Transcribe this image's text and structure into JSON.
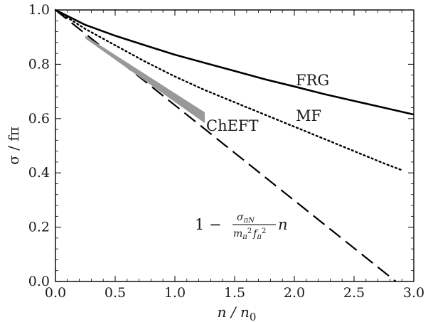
{
  "chart_data": {
    "type": "line",
    "title": "",
    "xlabel": "n / n",
    "xlabel_sub": "0",
    "ylabel": "σ / f",
    "ylabel_tail": "π",
    "xlim": [
      0.0,
      3.0
    ],
    "ylim": [
      0.0,
      1.0
    ],
    "x_ticks": [
      "0.0",
      "0.5",
      "1.0",
      "1.5",
      "2.0",
      "2.5",
      "3.0"
    ],
    "y_ticks": [
      "0.0",
      "0.2",
      "0.4",
      "0.6",
      "0.8",
      "1.0"
    ],
    "grid": false,
    "series": [
      {
        "name": "FRG",
        "style": "solid",
        "x": [
          0.0,
          0.25,
          0.5,
          0.75,
          1.0,
          1.25,
          1.5,
          1.75,
          2.0,
          2.25,
          2.5,
          2.75,
          3.0
        ],
        "y": [
          1.0,
          0.945,
          0.905,
          0.87,
          0.835,
          0.805,
          0.775,
          0.745,
          0.718,
          0.69,
          0.665,
          0.64,
          0.615
        ]
      },
      {
        "name": "MF",
        "style": "dotted",
        "x": [
          0.0,
          0.25,
          0.5,
          0.75,
          1.0,
          1.25,
          1.5,
          1.75,
          2.0,
          2.25,
          2.5,
          2.75,
          2.9
        ],
        "y": [
          1.0,
          0.93,
          0.87,
          0.81,
          0.755,
          0.705,
          0.66,
          0.615,
          0.57,
          0.525,
          0.48,
          0.435,
          0.41
        ]
      },
      {
        "name": "1 − σπN n / (mπ² fπ²)",
        "label_parts": {
          "lead": "1 −",
          "num": "σ",
          "num_sub": "πN",
          "den_m": "m",
          "den_m_sub": "π",
          "den_f": "f",
          "den_f_sub": "π",
          "tail": "n"
        },
        "style": "dashed",
        "x": [
          0.0,
          2.85
        ],
        "y": [
          1.0,
          0.0
        ]
      },
      {
        "name": "ChEFT",
        "style": "band",
        "x": [
          0.25,
          1.25
        ],
        "y_upper": [
          0.905,
          0.623
        ],
        "y_lower": [
          0.895,
          0.583
        ]
      }
    ]
  }
}
